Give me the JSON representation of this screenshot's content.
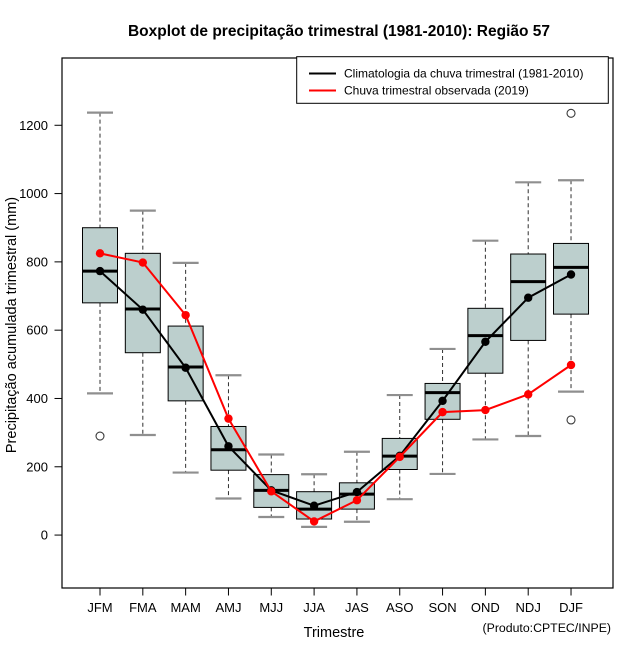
{
  "chart_data": {
    "type": "boxplot",
    "title": "Boxplot de precipitação trimestral (1981-2010): Região 57",
    "xlabel": "Trimestre",
    "ylabel": "Precipitação acumulada trimestral (mm)",
    "credit": "(Produto:CPTEC/INPE)",
    "categories": [
      "JFM",
      "FMA",
      "MAM",
      "AMJ",
      "MJJ",
      "JJA",
      "JAS",
      "ASO",
      "SON",
      "OND",
      "NDJ",
      "DJF"
    ],
    "y_ticks": [
      0,
      200,
      400,
      600,
      800,
      1000,
      1200
    ],
    "ylim": [
      -155,
      1397
    ],
    "grid": false,
    "legend_position": "top-right",
    "box_fill": "#bccfcd",
    "box_stroke": "#000000",
    "whisker_color": "#303030",
    "cap_color": "#8f8f8f",
    "boxes": [
      {
        "label": "JFM",
        "whisker_low": 415,
        "q1": 680,
        "median": 773,
        "q3": 900,
        "whisker_high": 1237,
        "outliers": [
          290
        ]
      },
      {
        "label": "FMA",
        "whisker_low": 293,
        "q1": 534,
        "median": 662,
        "q3": 825,
        "whisker_high": 950,
        "outliers": []
      },
      {
        "label": "MAM",
        "whisker_low": 183,
        "q1": 393,
        "median": 492,
        "q3": 612,
        "whisker_high": 797,
        "outliers": []
      },
      {
        "label": "AMJ",
        "whisker_low": 107,
        "q1": 190,
        "median": 250,
        "q3": 318,
        "whisker_high": 468,
        "outliers": []
      },
      {
        "label": "MJJ",
        "whisker_low": 53,
        "q1": 81,
        "median": 131,
        "q3": 177,
        "whisker_high": 236,
        "outliers": []
      },
      {
        "label": "JJA",
        "whisker_low": 24,
        "q1": 47,
        "median": 76,
        "q3": 127,
        "whisker_high": 178,
        "outliers": []
      },
      {
        "label": "JAS",
        "whisker_low": 39,
        "q1": 76,
        "median": 120,
        "q3": 153,
        "whisker_high": 244,
        "outliers": []
      },
      {
        "label": "ASO",
        "whisker_low": 105,
        "q1": 192,
        "median": 231,
        "q3": 283,
        "whisker_high": 410,
        "outliers": []
      },
      {
        "label": "SON",
        "whisker_low": 179,
        "q1": 339,
        "median": 417,
        "q3": 444,
        "whisker_high": 545,
        "outliers": []
      },
      {
        "label": "OND",
        "whisker_low": 280,
        "q1": 474,
        "median": 584,
        "q3": 664,
        "whisker_high": 862,
        "outliers": []
      },
      {
        "label": "NDJ",
        "whisker_low": 290,
        "q1": 570,
        "median": 742,
        "q3": 823,
        "whisker_high": 1033,
        "outliers": []
      },
      {
        "label": "DJF",
        "whisker_low": 420,
        "q1": 647,
        "median": 784,
        "q3": 854,
        "whisker_high": 1039,
        "outliers": [
          337,
          1235
        ]
      }
    ],
    "series": [
      {
        "name": "Climatologia da chuva trimestral (1981-2010)",
        "color": "#000000",
        "values": [
          773,
          660,
          490,
          260,
          131,
          86,
          126,
          232,
          393,
          566,
          695,
          763
        ]
      },
      {
        "name": "Chuva trimestral observada (2019)",
        "color": "#ff0000",
        "values": [
          825,
          798,
          644,
          341,
          128,
          40,
          102,
          229,
          360,
          366,
          412,
          498
        ]
      }
    ]
  }
}
